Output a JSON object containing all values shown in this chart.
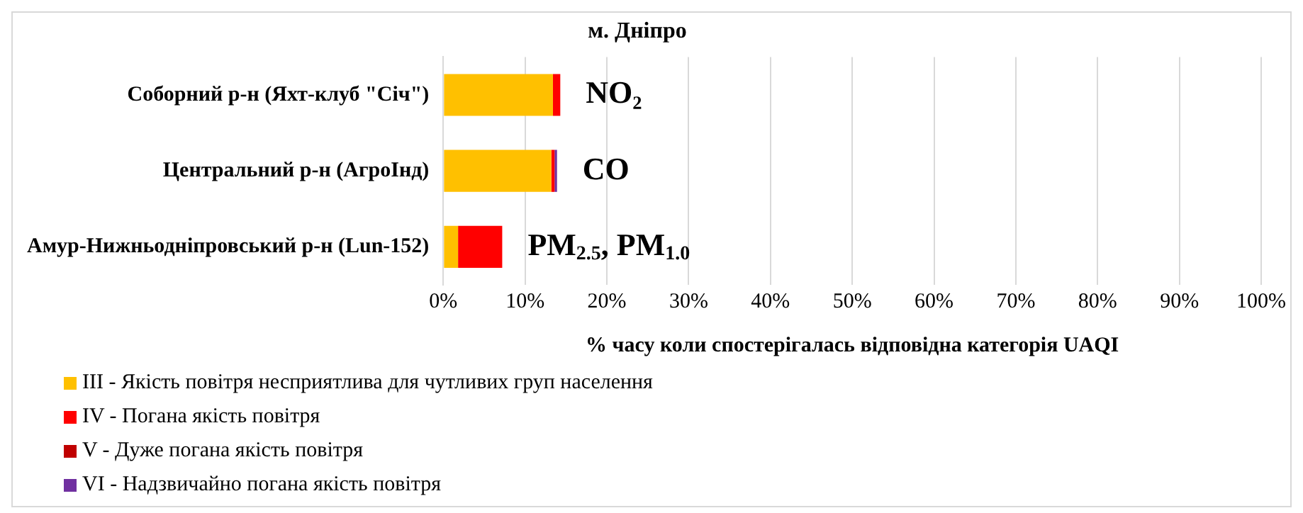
{
  "chart_data": {
    "type": "bar",
    "orientation": "horizontal",
    "stacked": true,
    "title": "м. Дніпро",
    "xlabel": "% часу коли спостерігалась відповідна категорія UAQI",
    "categories": [
      "Соборний р-н (Яхт-клуб \"Січ\")",
      "Центральний р-н (АгроІнд)",
      "Амур-Нижньодніпровський р-н (Lun-152)"
    ],
    "series": [
      {
        "name": "III - Якість повітря несприятлива для чутливих груп населення",
        "color": "#ffc000",
        "values": [
          13.4,
          13.2,
          1.8
        ]
      },
      {
        "name": "IV - Погана якість повітря",
        "color": "#ff0000",
        "values": [
          0.9,
          0.4,
          5.4
        ]
      },
      {
        "name": "V - Дуже погана якість повітря",
        "color": "#c00000",
        "values": [
          0,
          0,
          0
        ]
      },
      {
        "name": "VI - Надзвичайно погана якість повітря",
        "color": "#7030a0",
        "values": [
          0,
          0.3,
          0
        ]
      }
    ],
    "xlim": [
      0,
      100
    ],
    "xticks": [
      {
        "value": 0,
        "label": "0%"
      },
      {
        "value": 10,
        "label": "10%"
      },
      {
        "value": 20,
        "label": "20%"
      },
      {
        "value": 30,
        "label": "30%"
      },
      {
        "value": 40,
        "label": "40%"
      },
      {
        "value": 50,
        "label": "50%"
      },
      {
        "value": 60,
        "label": "60%"
      },
      {
        "value": 70,
        "label": "70%"
      },
      {
        "value": 80,
        "label": "80%"
      },
      {
        "value": 90,
        "label": "90%"
      },
      {
        "value": 100,
        "label": "100%"
      }
    ],
    "grid": "x",
    "legend": "bottom left",
    "annotations": [
      "NO₂",
      "CO",
      "PM$_{2.5}$, PM$_{1.0}$"
    ]
  }
}
